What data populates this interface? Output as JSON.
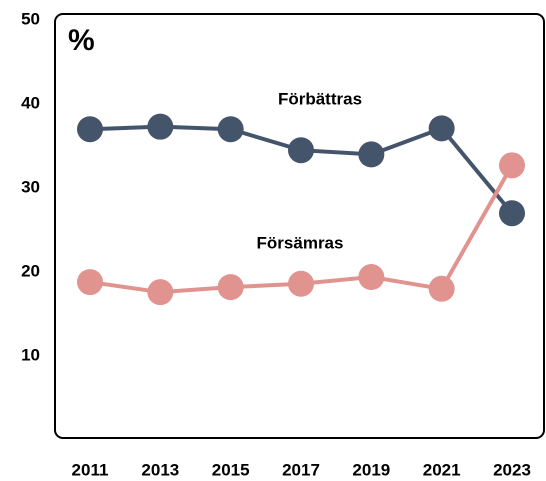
{
  "chart_data": {
    "type": "line",
    "title": "%",
    "categories": [
      "2011",
      "2013",
      "2015",
      "2017",
      "2019",
      "2021",
      "2023"
    ],
    "series": [
      {
        "name": "Förbättras",
        "color": "#44546a",
        "values": [
          37,
          37.3,
          37,
          34.5,
          34,
          37.1,
          27
        ]
      },
      {
        "name": "Försämras",
        "color": "#e0938f",
        "values": [
          18.8,
          17.6,
          18.2,
          18.6,
          19.4,
          18,
          32.7
        ]
      }
    ],
    "ylim": [
      0,
      50
    ],
    "yticks": [
      10,
      20,
      30,
      40,
      50
    ]
  }
}
